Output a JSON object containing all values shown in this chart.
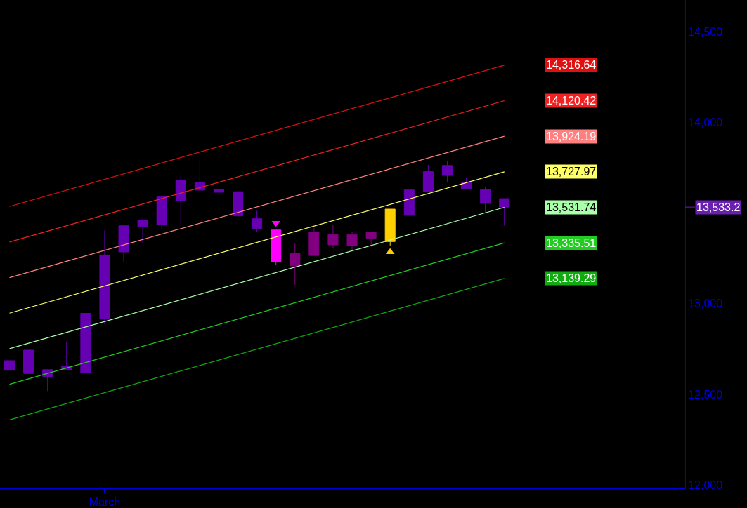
{
  "chart_data": {
    "type": "candlestick",
    "categories": [
      null,
      null,
      null,
      null,
      null,
      "March",
      null,
      null,
      null,
      null,
      null,
      null,
      null,
      null,
      null,
      null,
      null,
      null,
      null,
      null,
      null,
      null,
      null,
      null,
      null,
      null,
      null,
      null,
      null,
      null,
      null,
      null,
      null,
      null,
      null,
      null
    ],
    "ohlc": [
      [
        12686,
        12686,
        12633,
        12633
      ],
      [
        12744,
        12744,
        12615,
        12615
      ],
      [
        12636,
        12636,
        12518,
        12599
      ],
      [
        12656,
        12791,
        12634,
        12634
      ],
      [
        12947,
        12947,
        12618,
        12618
      ],
      [
        13269,
        13405,
        12887,
        12915
      ],
      [
        13430,
        13430,
        13232,
        13286
      ],
      [
        13461,
        13471,
        13332,
        13426
      ],
      [
        13591,
        13591,
        13411,
        13435
      ],
      [
        13683,
        13711,
        13430,
        13569
      ],
      [
        13670,
        13792,
        13627,
        13627
      ],
      [
        13632,
        13632,
        13507,
        13615
      ],
      [
        13618,
        13654,
        13485,
        13485
      ],
      [
        13469,
        13513,
        13396,
        13416
      ],
      [
        13407,
        13407,
        13213,
        13232
      ],
      [
        13277,
        13332,
        13104,
        13209
      ],
      [
        13396,
        13417,
        13266,
        13266
      ],
      [
        13382,
        13437,
        13305,
        13325
      ],
      [
        13382,
        13396,
        13296,
        13319
      ],
      [
        13396,
        13396,
        13315,
        13362
      ],
      [
        13522,
        13522,
        13321,
        13343
      ],
      [
        13628,
        13628,
        13488,
        13488
      ],
      [
        13729,
        13766,
        13618,
        13618
      ],
      [
        13763,
        13786,
        13673,
        13708
      ],
      [
        13667,
        13695,
        13635,
        13635
      ],
      [
        13632,
        13644,
        13498,
        13554
      ],
      [
        13580,
        13580,
        13430,
        13533.2
      ],
      null,
      null,
      null,
      null,
      null,
      null,
      null,
      null,
      null
    ],
    "colors": [
      "#6600b3",
      "#6600b3",
      "#6600b3",
      "#6600b3",
      "#6600b3",
      "#6600b3",
      "#6600b3",
      "#6600b3",
      "#6600b3",
      "#6600b3",
      "#6600b3",
      "#6600b3",
      "#6600b3",
      "#6600b3",
      "#ff00ff",
      "#800080",
      "#800080",
      "#800080",
      "#800080",
      "#800080",
      "#ffd000",
      "#6600b3",
      "#6600b3",
      "#6600b3",
      "#6600b3",
      "#6600b3",
      "#6600b3",
      null,
      null,
      null,
      null,
      null,
      null,
      null,
      null,
      null
    ],
    "series": [
      {
        "type": "line",
        "color": "#dd1111",
        "values": [
          13536.64,
          null,
          null,
          null,
          null,
          null,
          null,
          null,
          null,
          null,
          null,
          null,
          null,
          null,
          null,
          null,
          null,
          null,
          null,
          null,
          null,
          null,
          null,
          null,
          null,
          null,
          14316.64,
          null,
          null,
          null,
          null,
          null,
          null,
          null,
          null,
          null
        ]
      },
      {
        "type": "line",
        "color": "#ee2222",
        "values": [
          13340.42,
          null,
          null,
          null,
          null,
          null,
          null,
          null,
          null,
          null,
          null,
          null,
          null,
          null,
          null,
          null,
          null,
          null,
          null,
          null,
          null,
          null,
          null,
          null,
          null,
          null,
          14120.42,
          null,
          null,
          null,
          null,
          null,
          null,
          null,
          null,
          null
        ]
      },
      {
        "type": "line",
        "color": "#ff8080",
        "values": [
          13144.19,
          null,
          null,
          null,
          null,
          null,
          null,
          null,
          null,
          null,
          null,
          null,
          null,
          null,
          null,
          null,
          null,
          null,
          null,
          null,
          null,
          null,
          null,
          null,
          null,
          null,
          13924.19,
          null,
          null,
          null,
          null,
          null,
          null,
          null,
          null,
          null
        ]
      },
      {
        "type": "line",
        "color": "#ffff66",
        "values": [
          12947.97,
          null,
          null,
          null,
          null,
          null,
          null,
          null,
          null,
          null,
          null,
          null,
          null,
          null,
          null,
          null,
          null,
          null,
          null,
          null,
          null,
          null,
          null,
          null,
          null,
          null,
          13727.97,
          null,
          null,
          null,
          null,
          null,
          null,
          null,
          null,
          null
        ]
      },
      {
        "type": "line",
        "color": "#aaffaa",
        "values": [
          12751.74,
          null,
          null,
          null,
          null,
          null,
          null,
          null,
          null,
          null,
          null,
          null,
          null,
          null,
          null,
          null,
          null,
          null,
          null,
          null,
          null,
          null,
          null,
          null,
          null,
          null,
          13531.74,
          null,
          null,
          null,
          null,
          null,
          null,
          null,
          null,
          null
        ]
      },
      {
        "type": "line",
        "color": "#22cc22",
        "values": [
          12555.51,
          null,
          null,
          null,
          null,
          null,
          null,
          null,
          null,
          null,
          null,
          null,
          null,
          null,
          null,
          null,
          null,
          null,
          null,
          null,
          null,
          null,
          null,
          null,
          null,
          null,
          13335.51,
          null,
          null,
          null,
          null,
          null,
          null,
          null,
          null,
          null
        ]
      },
      {
        "type": "line",
        "color": "#11aa11",
        "values": [
          12359.29,
          null,
          null,
          null,
          null,
          null,
          null,
          null,
          null,
          null,
          null,
          null,
          null,
          null,
          null,
          null,
          null,
          null,
          null,
          null,
          null,
          null,
          null,
          null,
          null,
          null,
          13139.29,
          null,
          null,
          null,
          null,
          null,
          null,
          null,
          null,
          null
        ]
      },
      {
        "type": "scatter",
        "marker": "triangle",
        "color": "#ff00ff",
        "values": [
          null,
          null,
          null,
          null,
          null,
          null,
          null,
          null,
          null,
          null,
          null,
          null,
          null,
          null,
          13446,
          null,
          null,
          null,
          null,
          null,
          null,
          null,
          null,
          null,
          null,
          null,
          null,
          null,
          null,
          null,
          null,
          null,
          null,
          null,
          null,
          null
        ]
      },
      {
        "type": "scatter",
        "marker": "triangle",
        "color": "#ffcc00",
        "values": [
          null,
          null,
          null,
          null,
          null,
          null,
          null,
          null,
          null,
          null,
          null,
          null,
          null,
          null,
          null,
          null,
          null,
          null,
          null,
          null,
          13285,
          null,
          null,
          null,
          null,
          null,
          null,
          null,
          null,
          null,
          null,
          null,
          null,
          null,
          null,
          null
        ]
      }
    ],
    "annotations": [
      "14,316.64",
      "14,120.42",
      "13,924.19",
      "13,727.97",
      "13,531.74",
      "13,335.51",
      "13,139.29",
      "13,533.2"
    ],
    "ylim": [
      11981,
      14676
    ],
    "yticks": [
      {
        "value": 12000,
        "label": "12,000"
      },
      {
        "value": 12500,
        "label": "12,500"
      },
      {
        "value": 13000,
        "label": "13,000"
      },
      {
        "value": 14000,
        "label": "14,000"
      },
      {
        "value": 14500,
        "label": "14,500"
      }
    ],
    "grid": false
  }
}
